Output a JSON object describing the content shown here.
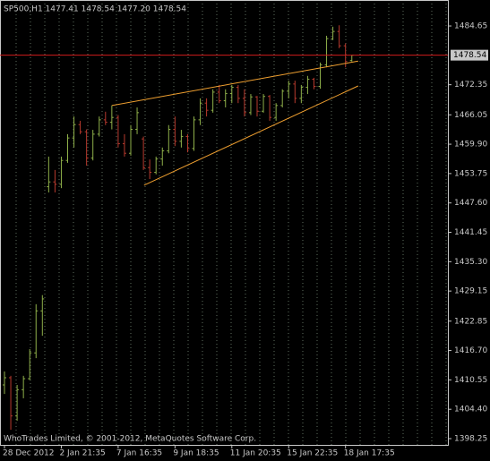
{
  "chart_data": {
    "type": "ohlc",
    "title": "SP500,H1  1477.41 1478.54 1477.20 1478.54",
    "footer": "WhoTrades Limited, © 2001-2012, MetaQuotes Software Corp.",
    "categories": [
      "28 Dec 2012",
      null,
      null,
      null,
      null,
      null,
      null,
      null,
      null,
      "2 Jan 21:35",
      null,
      null,
      null,
      null,
      null,
      null,
      null,
      null,
      "7 Jan 16:35",
      null,
      null,
      null,
      null,
      null,
      null,
      null,
      null,
      "9 Jan 18:35",
      null,
      null,
      null,
      null,
      null,
      null,
      null,
      null,
      "11 Jan 20:35",
      null,
      null,
      null,
      null,
      null,
      null,
      null,
      null,
      "15 Jan 22:35",
      null,
      null,
      null,
      null,
      null,
      null,
      null,
      null,
      "18 Jan 17:35",
      null
    ],
    "open": [
      1409.5,
      1411.0,
      1403.0,
      1408.5,
      1410.8,
      1416.2,
      1425.0,
      1451.0,
      1452.0,
      1451.5,
      1456.5,
      1461.2,
      1464.0,
      1462.5,
      1457.0,
      1462.0,
      1465.0,
      1464.5,
      1465.5,
      1460.0,
      1458.0,
      1463.0,
      1461.0,
      1455.0,
      1454.0,
      1456.8,
      1458.5,
      1463.0,
      1460.5,
      1461.5,
      1459.0,
      1465.0,
      1468.5,
      1467.0,
      1470.8,
      1469.0,
      1470.5,
      1471.8,
      1469.5,
      1466.5,
      1469.8,
      1466.8,
      1469.9,
      1465.5,
      1468.0,
      1471.0,
      1472.5,
      1469.5,
      1471.8,
      1473.5,
      1472.0,
      1476.5,
      1482.0,
      1483.5,
      1480.5,
      1477.41
    ],
    "high": [
      1412.3,
      1411.4,
      1409.5,
      1411.4,
      1417.0,
      1426.4,
      1428.3,
      1457.3,
      1454.5,
      1457.3,
      1462.0,
      1465.7,
      1464.8,
      1463.0,
      1462.9,
      1465.7,
      1466.7,
      1468.0,
      1466.0,
      1462.0,
      1463.9,
      1467.6,
      1461.5,
      1456.7,
      1457.3,
      1459.2,
      1463.9,
      1465.7,
      1462.9,
      1462.0,
      1465.7,
      1469.5,
      1469.5,
      1471.4,
      1472.3,
      1471.4,
      1472.3,
      1472.3,
      1471.4,
      1470.4,
      1470.0,
      1470.4,
      1470.2,
      1468.5,
      1471.4,
      1473.2,
      1473.2,
      1472.3,
      1474.2,
      1473.8,
      1477.0,
      1482.6,
      1484.5,
      1484.8,
      1481.0,
      1478.54
    ],
    "low": [
      1407.6,
      1400.1,
      1402.0,
      1406.7,
      1410.5,
      1415.1,
      1419.8,
      1449.8,
      1449.8,
      1450.7,
      1456.0,
      1459.2,
      1462.0,
      1455.4,
      1456.5,
      1461.5,
      1463.9,
      1463.0,
      1459.2,
      1457.3,
      1457.5,
      1462.0,
      1454.5,
      1452.6,
      1453.6,
      1455.4,
      1458.0,
      1459.5,
      1459.2,
      1458.2,
      1458.5,
      1463.9,
      1465.7,
      1466.5,
      1468.5,
      1467.6,
      1468.5,
      1468.5,
      1465.7,
      1466.0,
      1465.7,
      1466.5,
      1464.8,
      1464.8,
      1467.6,
      1469.5,
      1468.5,
      1468.5,
      1470.4,
      1471.4,
      1471.5,
      1476.0,
      1481.7,
      1480.0,
      1476.0,
      1477.2
    ],
    "close": [
      1411.0,
      1403.0,
      1408.5,
      1410.8,
      1416.2,
      1425.0,
      1427.5,
      1452.0,
      1451.5,
      1456.5,
      1461.2,
      1464.0,
      1462.5,
      1457.0,
      1462.0,
      1465.0,
      1464.5,
      1465.5,
      1460.0,
      1458.0,
      1463.0,
      1466.5,
      1455.0,
      1454.0,
      1456.8,
      1458.5,
      1463.0,
      1460.5,
      1461.5,
      1459.0,
      1465.0,
      1468.5,
      1467.0,
      1470.8,
      1469.0,
      1470.5,
      1471.8,
      1469.5,
      1466.5,
      1469.8,
      1466.8,
      1469.9,
      1465.5,
      1468.0,
      1471.0,
      1472.5,
      1469.5,
      1471.8,
      1473.5,
      1472.0,
      1476.5,
      1482.0,
      1483.5,
      1480.5,
      1477.2,
      1478.54
    ],
    "up_color": "#8fb04a",
    "down_color": "#b83a2e",
    "ylim": [
      1396.94,
      1490.09
    ],
    "yticks": [
      1484.65,
      1472.35,
      1466.05,
      {
        "value": 1459.9,
        "label": "1459.90"
      },
      1453.75,
      {
        "value": 1447.6,
        "label": "1447.60"
      },
      1441.45,
      {
        "value": 1435.3,
        "label": "1435.30"
      },
      1429.15,
      1422.85,
      {
        "value": 1416.7,
        "label": "1416.70"
      },
      1410.55,
      {
        "value": 1404.4,
        "label": "1404.40"
      },
      1398.25
    ],
    "price_line": 1478.54,
    "price_line_color": "#d01c1c",
    "trendlines": [
      {
        "x": [
          17,
          56
        ],
        "y": [
          1468.0,
          1477.3
        ]
      },
      {
        "x": [
          22.1,
          56
        ],
        "y": [
          1451.3,
          1472.1
        ]
      }
    ],
    "trendline_color": "#f0a030",
    "grid": true
  }
}
